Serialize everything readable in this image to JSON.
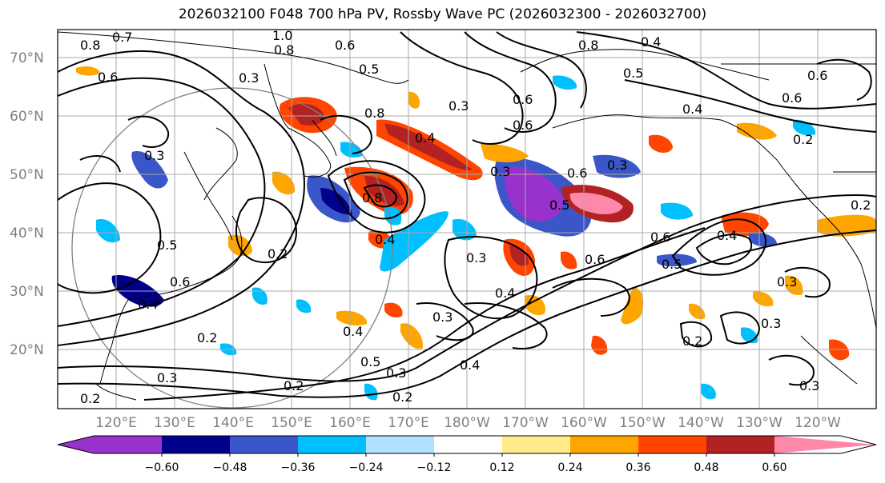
{
  "title": "2026032100 F048 700 hPa PV, Rossby Wave PC (2026032300 - 2026032700)",
  "lat_labels": [
    "70°N",
    "60°N",
    "50°N",
    "40°N",
    "30°N",
    "20°N"
  ],
  "lon_labels": [
    "120°E",
    "130°E",
    "140°E",
    "150°E",
    "160°E",
    "170°E",
    "180°W",
    "170°W",
    "160°W",
    "150°W",
    "140°W",
    "130°W",
    "120°W"
  ],
  "colorbar": {
    "colors": [
      "#9932cc",
      "#00008b",
      "#3a56c8",
      "#00bfff",
      "#b0e2ff",
      "#ffffff",
      "#ffeb8a",
      "#ffa500",
      "#ff4500",
      "#b22222",
      "#ff88aa"
    ],
    "labels": [
      "−0.60",
      "−0.48",
      "−0.36",
      "−0.24",
      "−0.12",
      "0.12",
      "0.24",
      "0.36",
      "0.48",
      "0.60"
    ]
  },
  "contour_labels": [
    "0.8",
    "0.7",
    "0.6",
    "1.0",
    "0.8",
    "0.6",
    "0.5",
    "0.3",
    "0.8",
    "0.4",
    "0.5",
    "0.6",
    "0.4",
    "0.3",
    "0.6",
    "0.8",
    "0.4",
    "0.3",
    "0.6",
    "0.3",
    "0.3",
    "0.8",
    "0.5",
    "0.4",
    "0.2",
    "0.5",
    "0.6",
    "0.4",
    "0.3",
    "0.4",
    "0.6",
    "0.6",
    "0.5",
    "0.4",
    "0.3",
    "0.2",
    "0.4",
    "0.5",
    "0.3",
    "0.2",
    "0.4",
    "0.2",
    "0.3",
    "0.2",
    "0.2",
    "0.3",
    "0.3",
    "0.6",
    "0.6",
    "0.2",
    "0.2",
    "0.3"
  ],
  "colors": {
    "grid": "#a9a9a9",
    "coast": "#000000",
    "contour": "#000000",
    "latlon_text": "#808080"
  }
}
